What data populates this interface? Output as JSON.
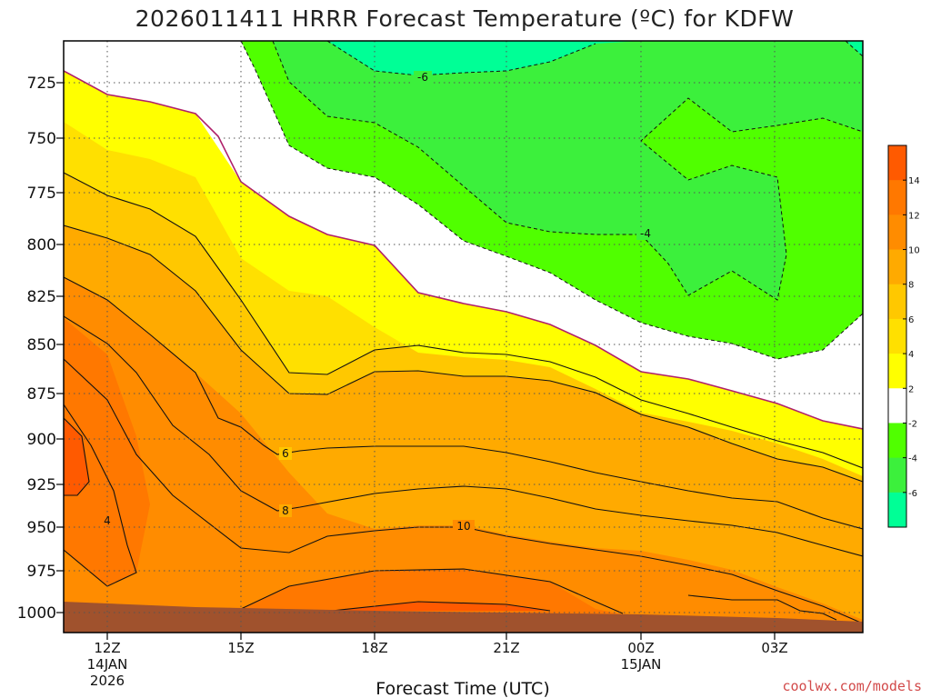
{
  "chart_data": {
    "type": "contour",
    "title": "2026011411 HRRR Forecast Temperature (ºC) for KDFW",
    "xlabel": "Forecast Time (UTC)",
    "ylabel": "",
    "y_ticks": [
      "725",
      "750",
      "775",
      "800",
      "825",
      "850",
      "875",
      "900",
      "925",
      "950",
      "975",
      "1000"
    ],
    "x_ticks": [
      {
        "lines": [
          "12Z",
          "14JAN",
          "2026"
        ]
      },
      {
        "lines": [
          "15Z"
        ]
      },
      {
        "lines": [
          "18Z"
        ]
      },
      {
        "lines": [
          "21Z"
        ]
      },
      {
        "lines": [
          "00Z",
          "15JAN"
        ]
      },
      {
        "lines": [
          "03Z"
        ]
      }
    ],
    "colorbar_labels": [
      "14",
      "12",
      "10",
      "8",
      "6",
      "4",
      "2",
      "-2",
      "-4",
      "-6"
    ],
    "contour_labels": [
      "-6",
      "-4",
      "6",
      "8",
      "10",
      "4"
    ],
    "credit": "coolwx.com/models",
    "colors": {
      "c14": "#ff5a00",
      "c12": "#ff7800",
      "c10": "#ff8c00",
      "c8": "#ffaa00",
      "c6": "#ffc800",
      "c4": "#ffe000",
      "c2": "#ffff00",
      "c0": "#ffffff",
      "cm2": "#50ff00",
      "cm4": "#3cf03c",
      "cm6": "#00ff96",
      "ground": "#a0522d",
      "freezing_line": "#b0206a"
    }
  }
}
